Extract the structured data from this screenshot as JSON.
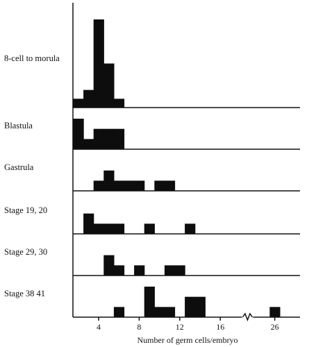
{
  "chart_data": {
    "type": "bar",
    "title": "",
    "xlabel": "Number of germ cells/embryo",
    "ylabel": "",
    "xlim": [
      1,
      28
    ],
    "x_ticks": [
      4,
      8,
      12,
      16,
      26
    ],
    "x_axis_break": {
      "from": 18,
      "to": 24
    },
    "bin_width": 1,
    "panels": [
      {
        "name": "8-cell to morula",
        "ymax": 10,
        "bins": [
          {
            "x": 2,
            "value": 1
          },
          {
            "x": 3,
            "value": 2
          },
          {
            "x": 4,
            "value": 10
          },
          {
            "x": 5,
            "value": 5
          },
          {
            "x": 6,
            "value": 1
          }
        ]
      },
      {
        "name": "Blastula",
        "ymax": 3,
        "bins": [
          {
            "x": 2,
            "value": 3
          },
          {
            "x": 3,
            "value": 1
          },
          {
            "x": 4,
            "value": 2
          },
          {
            "x": 5,
            "value": 2
          },
          {
            "x": 6,
            "value": 2
          }
        ]
      },
      {
        "name": "Gastrula",
        "ymax": 3,
        "bins": [
          {
            "x": 4,
            "value": 1
          },
          {
            "x": 5,
            "value": 2
          },
          {
            "x": 6,
            "value": 1
          },
          {
            "x": 7,
            "value": 1
          },
          {
            "x": 8,
            "value": 1
          },
          {
            "x": 10,
            "value": 1
          },
          {
            "x": 11,
            "value": 1
          }
        ]
      },
      {
        "name": "Stage 19, 20",
        "ymax": 3,
        "bins": [
          {
            "x": 3,
            "value": 2
          },
          {
            "x": 4,
            "value": 1
          },
          {
            "x": 5,
            "value": 1
          },
          {
            "x": 6,
            "value": 1
          },
          {
            "x": 9,
            "value": 1
          },
          {
            "x": 13,
            "value": 1
          }
        ]
      },
      {
        "name": "Stage 29, 30",
        "ymax": 3,
        "bins": [
          {
            "x": 5,
            "value": 2
          },
          {
            "x": 6,
            "value": 1
          },
          {
            "x": 8,
            "value": 1
          },
          {
            "x": 11,
            "value": 1
          },
          {
            "x": 12,
            "value": 1
          }
        ]
      },
      {
        "name": "Stage 38 41",
        "ymax": 3,
        "bins": [
          {
            "x": 6,
            "value": 1
          },
          {
            "x": 9,
            "value": 3
          },
          {
            "x": 10,
            "value": 1
          },
          {
            "x": 11,
            "value": 1
          },
          {
            "x": 13,
            "value": 2
          },
          {
            "x": 14,
            "value": 2
          },
          {
            "x": 26,
            "value": 1
          }
        ]
      }
    ]
  }
}
